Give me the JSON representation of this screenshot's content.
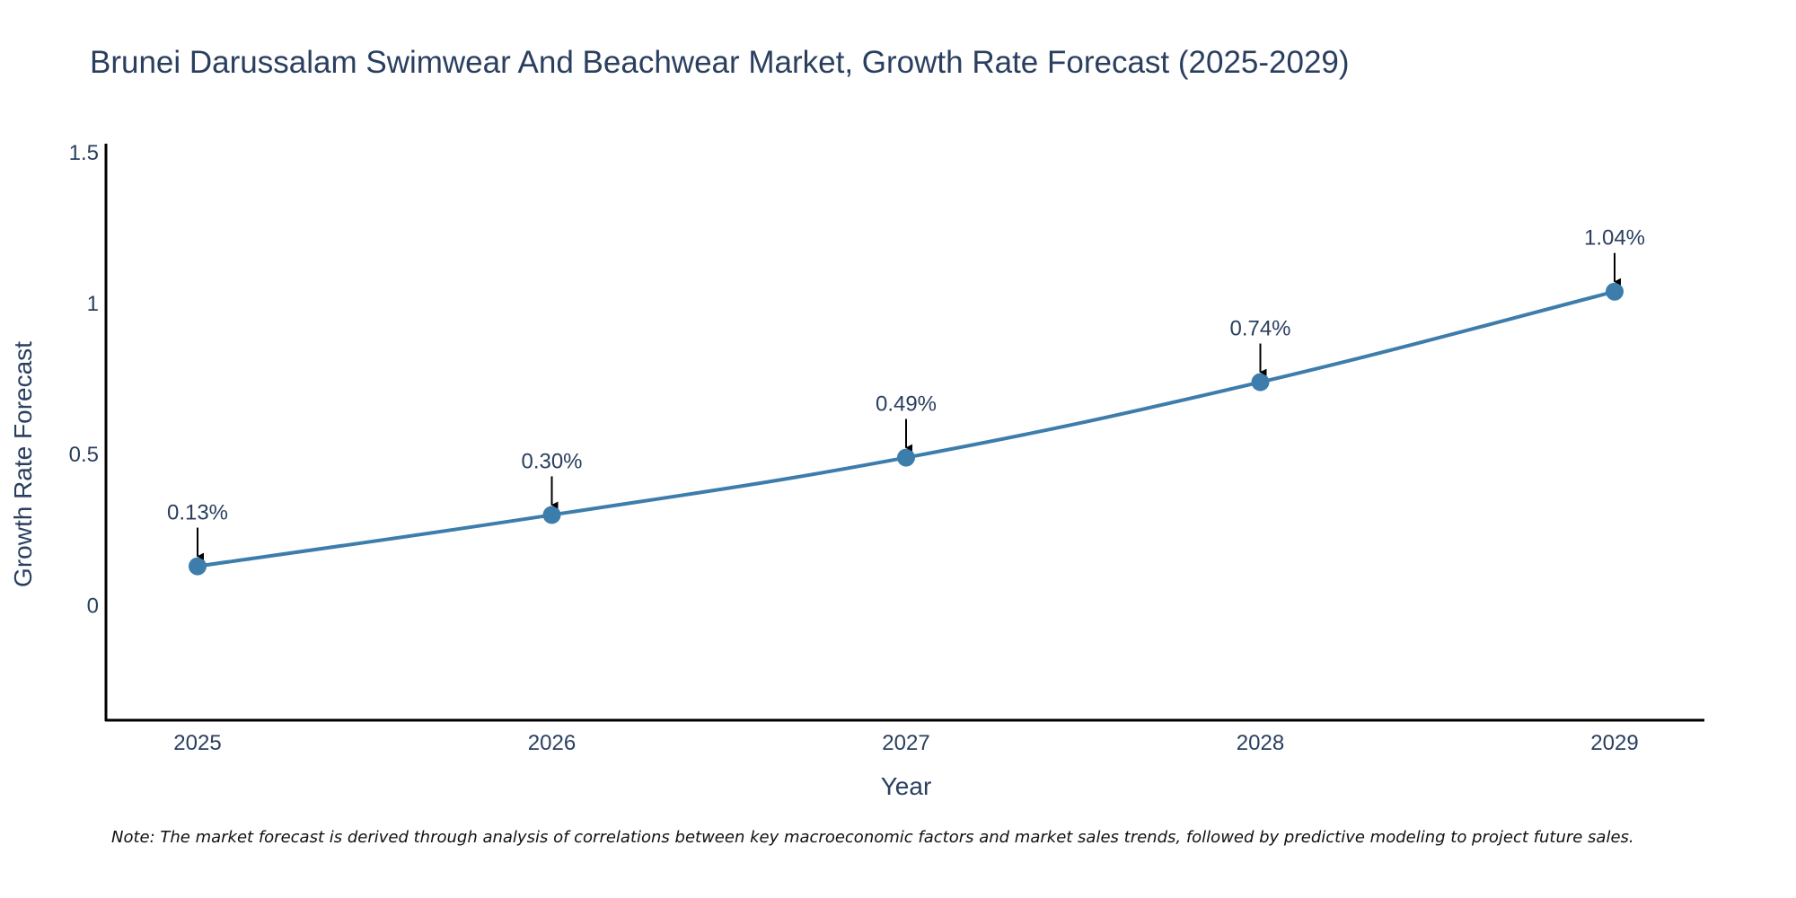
{
  "chart_data": {
    "type": "line",
    "title": "Brunei Darussalam Swimwear And Beachwear Market, Growth Rate Forecast (2025-2029)",
    "xlabel": "Year",
    "ylabel": "Growth Rate Forecast",
    "x": [
      "2025",
      "2026",
      "2027",
      "2028",
      "2029"
    ],
    "series": [
      {
        "name": "Growth Rate Forecast",
        "values": [
          0.13,
          0.3,
          0.49,
          0.74,
          1.04
        ],
        "labels": [
          "0.13%",
          "0.30%",
          "0.49%",
          "0.74%",
          "1.04%"
        ]
      }
    ],
    "ylim": [
      -0.38,
      1.53
    ],
    "yticks": [
      0,
      0.5,
      1,
      1.5
    ],
    "ytick_labels": [
      "0",
      "0.5",
      "1",
      "1.5"
    ],
    "grid": false,
    "legend": "none",
    "line_color": "#3d7dab",
    "marker_color": "#3d7dab",
    "note": "Note: The market forecast is derived through analysis of correlations between key macroeconomic factors and market sales trends, followed by predictive modeling to project future sales."
  }
}
